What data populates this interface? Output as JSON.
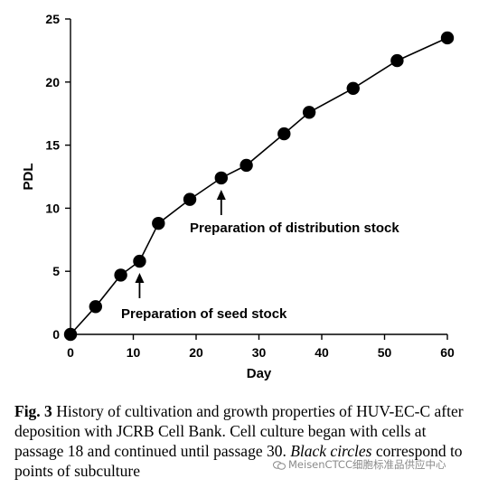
{
  "chart_data": {
    "type": "line",
    "xlabel": "Day",
    "ylabel": "PDL",
    "xlim": [
      0,
      60
    ],
    "ylim": [
      0,
      25
    ],
    "xticks": [
      0,
      10,
      20,
      30,
      40,
      50,
      60
    ],
    "yticks": [
      0,
      5,
      10,
      15,
      20,
      25
    ],
    "grid": false,
    "marker": "filled-circle",
    "color": "#000000",
    "x": [
      0,
      4,
      8,
      11,
      14,
      19,
      24,
      28,
      34,
      38,
      45,
      52,
      60
    ],
    "y": [
      0,
      2.2,
      4.7,
      5.8,
      8.8,
      10.7,
      12.4,
      13.4,
      15.9,
      17.6,
      19.5,
      21.7,
      23.5
    ],
    "annotations": [
      {
        "text": "Preparation of seed stock",
        "x": 11,
        "y": 5.8,
        "arrow": "up"
      },
      {
        "text": "Preparation of distribution stock",
        "x": 24,
        "y": 12.4,
        "arrow": "up"
      }
    ]
  },
  "caption": {
    "label": "Fig. 3",
    "text_1": "  History of cultivation and growth properties of HUV-EC-C after deposition with JCRB Cell Bank. Cell culture began with cells at passage 18 and continued until passage 30. ",
    "italic": "Black circles",
    "text_2": " correspond to points of subculture"
  },
  "watermark": {
    "text": "MeisenCTCC细胞标准品供应中心",
    "icon": "wechat-icon"
  }
}
